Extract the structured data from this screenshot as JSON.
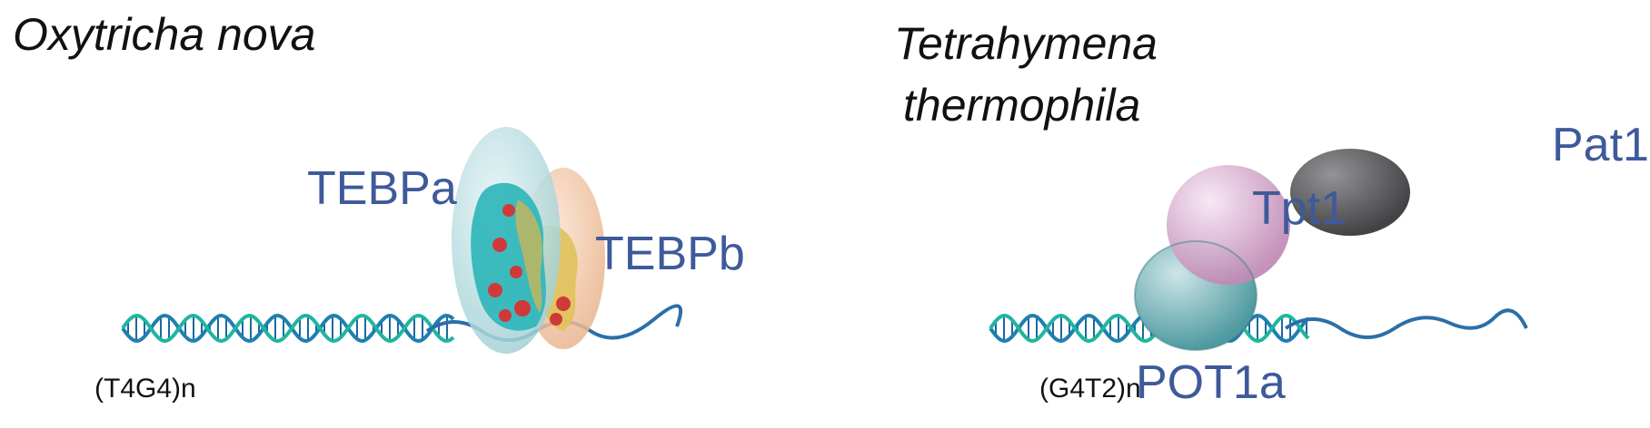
{
  "left": {
    "organism": "Oxytricha nova",
    "sequence": "(T4G4)n",
    "proteins": [
      {
        "label": "TEBPa",
        "color": "#3e5a9a"
      },
      {
        "label": "TEBPb",
        "color": "#3e5a9a"
      }
    ]
  },
  "right": {
    "organism_line1": "Tetrahymena",
    "organism_line2": "thermophila",
    "sequence": "(G4T2)n",
    "proteins": [
      {
        "label": "Tpt1",
        "color": "#3e5a9a"
      },
      {
        "label": "Pat1",
        "color": "#3e5a9a"
      },
      {
        "label": "POT1a",
        "color": "#3e5a9a"
      }
    ]
  },
  "colors": {
    "dna_strand_a": "#1f7fb0",
    "dna_strand_b": "#1fb5a0",
    "dna_single": "#2a6fa8",
    "tebpa_fill": "#b9dfe2",
    "tebpb_fill": "#f2c9a8",
    "tpt1_fill": "#d8a9cf",
    "pat1_fill": "#4a4a4e",
    "pot1a_fill": "#6fb3b8"
  }
}
